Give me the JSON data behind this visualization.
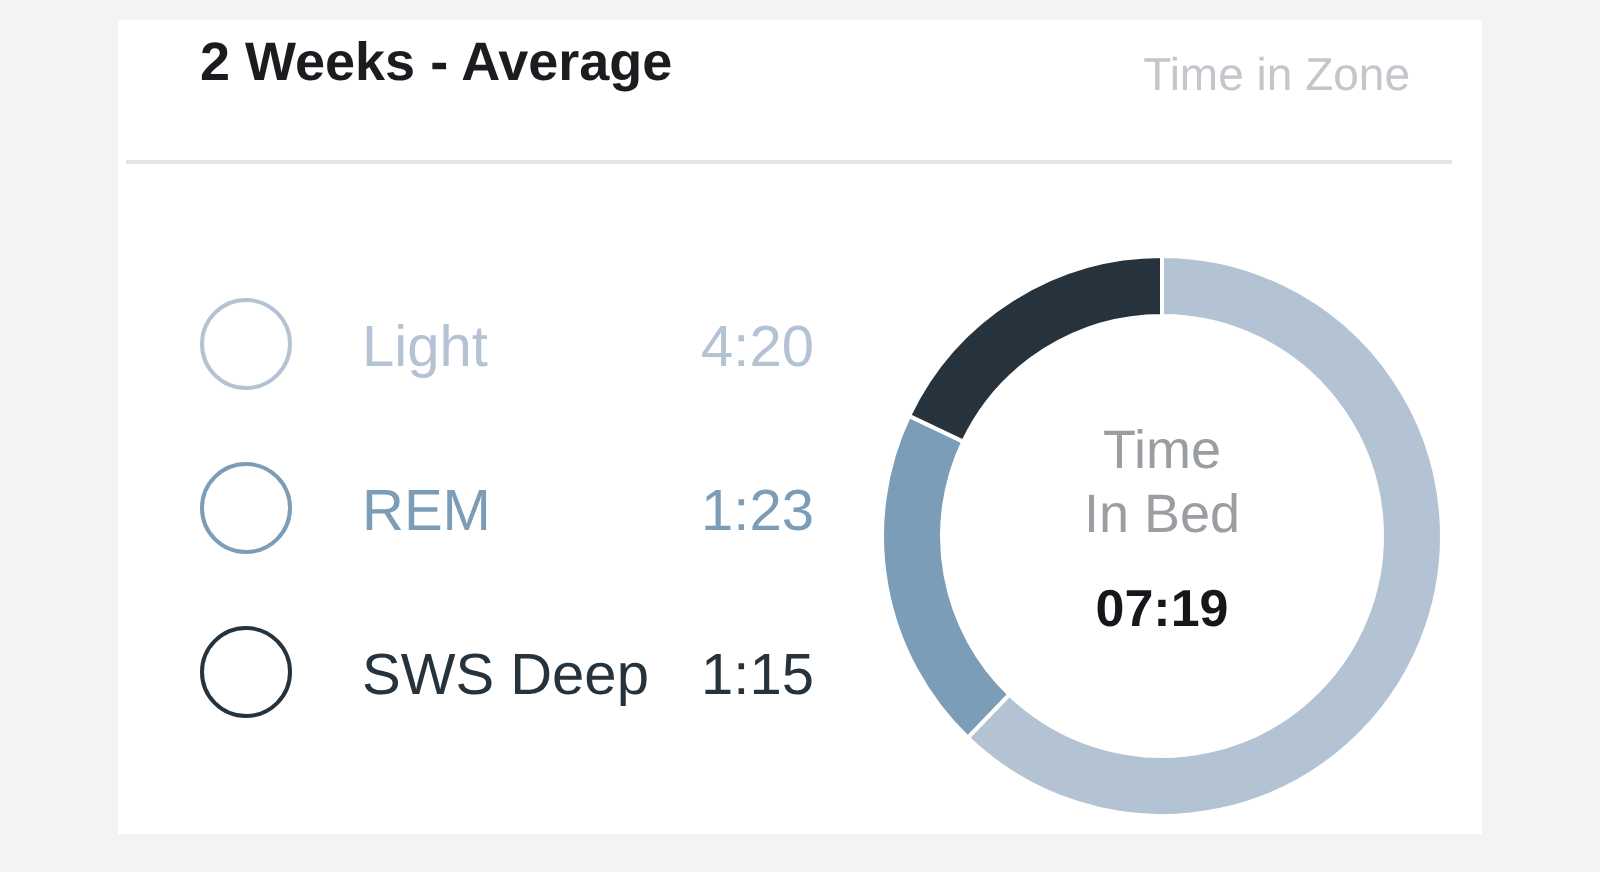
{
  "chart_data": {
    "type": "donut",
    "title": "2 Weeks - Average",
    "categories": [
      "Light",
      "REM",
      "SWS Deep"
    ],
    "values": [
      4.3333,
      1.3833,
      1.25
    ],
    "value_labels": [
      "4:20",
      "1:23",
      "1:15"
    ],
    "colors": [
      "#b4c3d3",
      "#7c9db7",
      "#26333d"
    ],
    "legend": "left",
    "annotations": [
      "Time in Zone",
      "Time\nIn Bed",
      "07:19"
    ]
  }
}
